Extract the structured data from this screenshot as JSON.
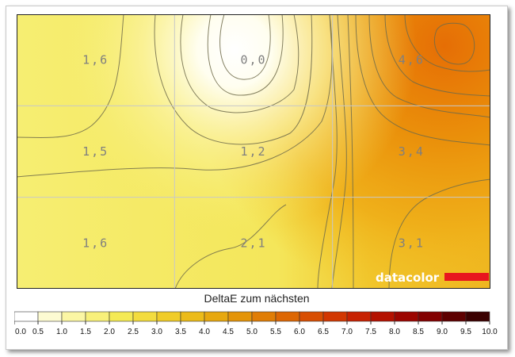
{
  "chart_data": {
    "type": "heatmap",
    "title": "DeltaE zum nächsten",
    "rows": 3,
    "cols": 3,
    "values": [
      [
        "1,6",
        "0,0",
        "4,6"
      ],
      [
        "1,5",
        "1,2",
        "3,4"
      ],
      [
        "1,6",
        "2,1",
        "3,1"
      ]
    ],
    "numeric_values": [
      [
        1.6,
        0.0,
        4.6
      ],
      [
        1.5,
        1.2,
        3.4
      ],
      [
        1.6,
        2.1,
        3.1
      ]
    ],
    "grid": true,
    "colorscale": {
      "min": 0,
      "max": 10,
      "ticks": [
        "0.0",
        "0.5",
        "1.0",
        "1.5",
        "2.0",
        "2.5",
        "3.0",
        "3.5",
        "4.0",
        "4.5",
        "5.0",
        "5.5",
        "6.0",
        "6.5",
        "7.0",
        "7.5",
        "8.0",
        "8.5",
        "9.0",
        "9.5",
        "10.0"
      ],
      "colors": [
        "#ffffff",
        "#fdfbd2",
        "#fbf6a4",
        "#f8f07a",
        "#f4ea55",
        "#f3dc3e",
        "#f0cc28",
        "#ecbb19",
        "#e7a80f",
        "#e49408",
        "#e07d05",
        "#dd6703",
        "#d84e02",
        "#d23701",
        "#c72101",
        "#b41100",
        "#9c0500",
        "#820000",
        "#5e0000",
        "#3a0000"
      ]
    },
    "logo": "datacolor"
  }
}
